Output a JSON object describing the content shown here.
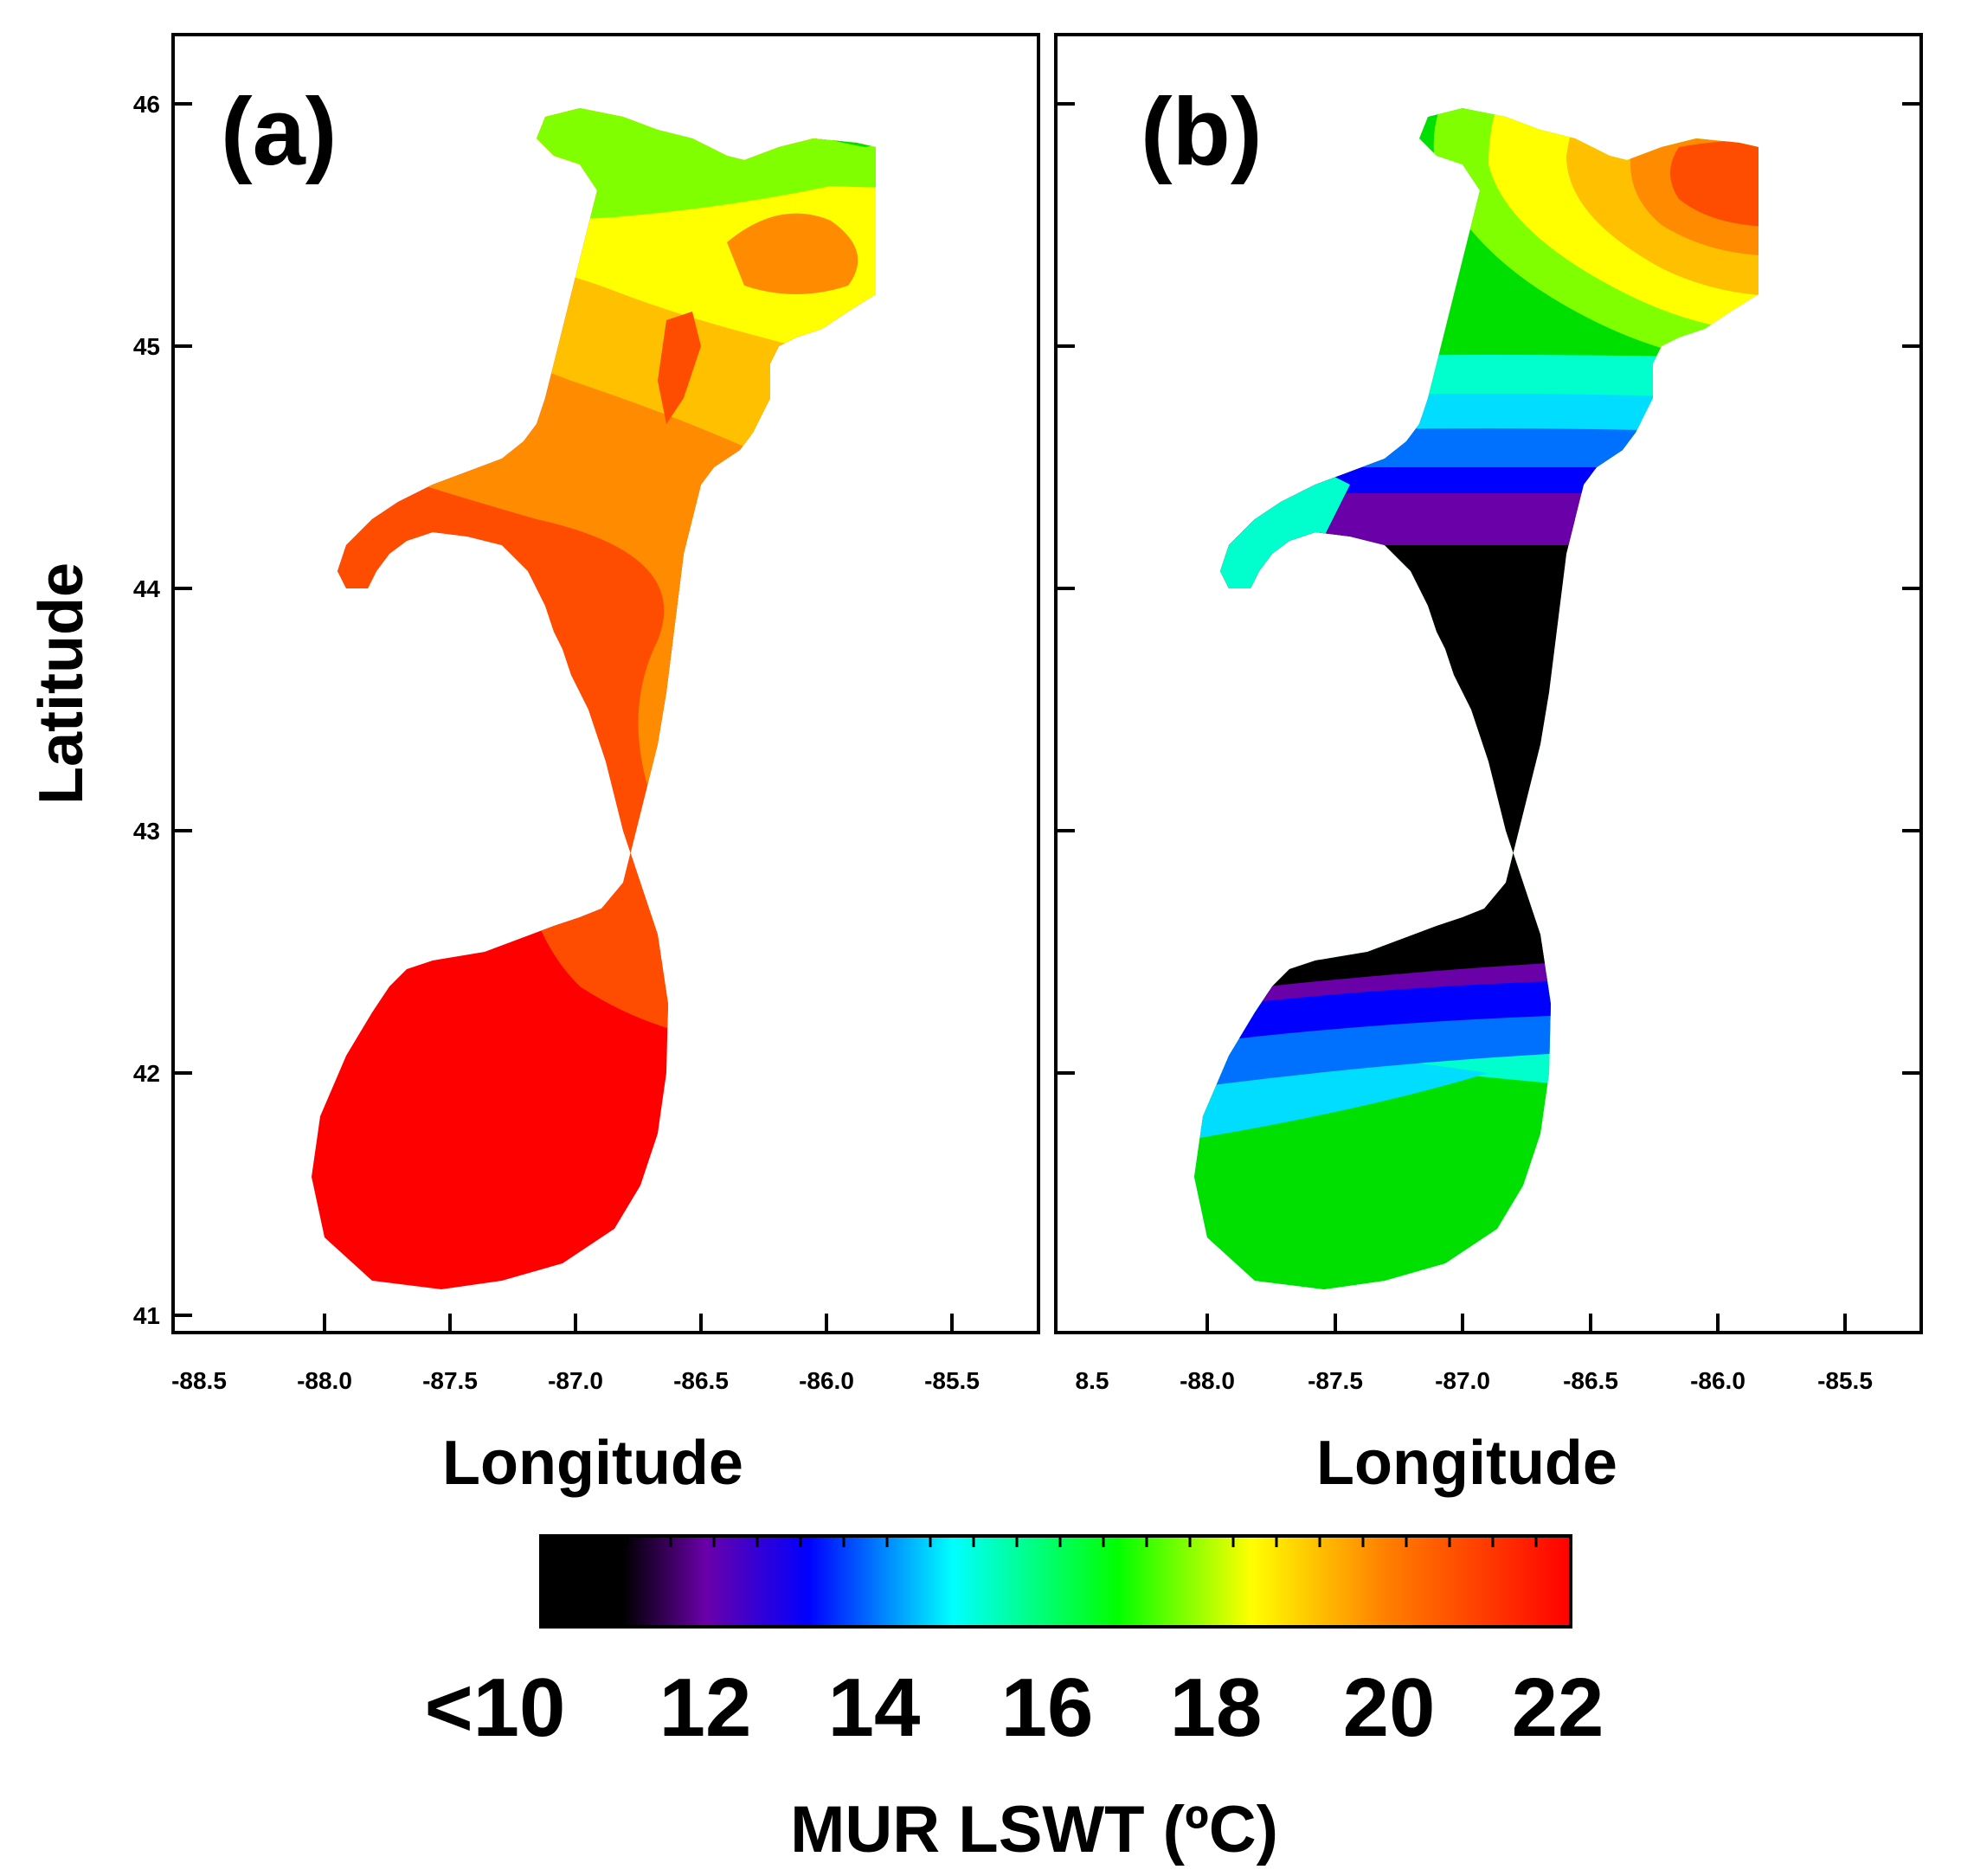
{
  "figure": {
    "y_axis_label": "Latitude",
    "colorbar_title": "MUR LSWT (ºC)",
    "colorbar_tick_labels": [
      "<10",
      "12",
      "14",
      "16",
      "18",
      "20",
      "22"
    ],
    "colorbar_colors": [
      "#000000",
      "#6a00a8",
      "#0000ff",
      "#00ffff",
      "#00ff00",
      "#ffff00",
      "#ff8000",
      "#ff0000"
    ],
    "palette": {
      "black": "#000000",
      "purple": "#6a00a8",
      "blue": "#0000ff",
      "blue2": "#0070ff",
      "cyan": "#00ddff",
      "cyan2": "#00ffcc",
      "green": "#00e000",
      "green2": "#7fff00",
      "yellow": "#ffff00",
      "gold": "#ffc000",
      "orange": "#ff8c00",
      "orangered": "#ff4d00",
      "red": "#ff0000"
    }
  },
  "panels": [
    {
      "label": "(a)",
      "x_axis_label": "Longitude",
      "y_tick_labels": [
        "46",
        "45",
        "44",
        "43",
        "42",
        "41"
      ],
      "x_tick_labels": [
        "-88.5",
        "-88.0",
        "-87.5",
        "-87.0",
        "-86.5",
        "-86.0",
        "-85.5"
      ],
      "lat_range": [
        41,
        46.25
      ],
      "lon_range": [
        -88.5,
        -85.2
      ]
    },
    {
      "label": "(b)",
      "x_axis_label": "Longitude",
      "x_tick_labels": [
        "8.5",
        "-88.0",
        "-87.5",
        "-87.0",
        "-86.5",
        "-86.0",
        "-85.5"
      ],
      "lat_range": [
        41,
        46.25
      ],
      "lon_range": [
        -88.5,
        -85.2
      ]
    }
  ]
}
